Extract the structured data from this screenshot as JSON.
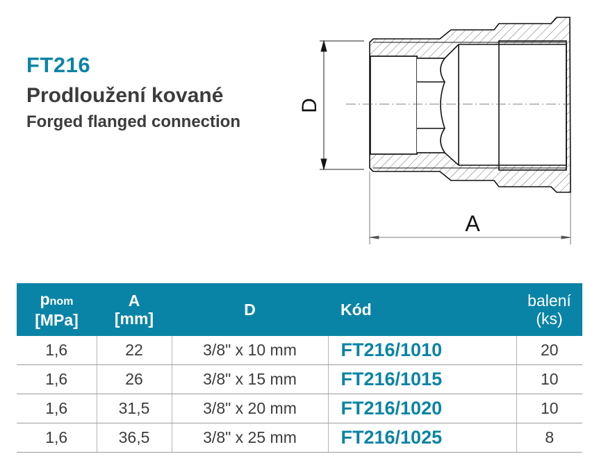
{
  "header": {
    "code": "FT216",
    "title_cz": "Prodloužení kované",
    "title_en": "Forged flanged connection"
  },
  "drawing": {
    "dim_d_label": "D",
    "dim_a_label": "A"
  },
  "colors": {
    "accent": "#0a84a6",
    "text": "#3c3c3c"
  },
  "table": {
    "headers": {
      "p_main": "p",
      "p_sub": "nom",
      "p_unit": "[MPa]",
      "a_main": "A",
      "a_unit": "[mm]",
      "d": "D",
      "code": "Kód",
      "pack_main": "balení",
      "pack_unit": "(ks)"
    },
    "rows": [
      {
        "p": "1,6",
        "a": "22",
        "d": "3/8\" x 10 mm",
        "code": "FT216/1010",
        "pack": "20"
      },
      {
        "p": "1,6",
        "a": "26",
        "d": "3/8\" x 15 mm",
        "code": "FT216/1015",
        "pack": "10"
      },
      {
        "p": "1,6",
        "a": "31,5",
        "d": "3/8\" x 20 mm",
        "code": "FT216/1020",
        "pack": "10"
      },
      {
        "p": "1,6",
        "a": "36,5",
        "d": "3/8\" x 25 mm",
        "code": "FT216/1025",
        "pack": "8"
      }
    ]
  }
}
